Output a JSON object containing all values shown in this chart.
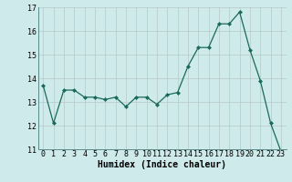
{
  "x": [
    0,
    1,
    2,
    3,
    4,
    5,
    6,
    7,
    8,
    9,
    10,
    11,
    12,
    13,
    14,
    15,
    16,
    17,
    18,
    19,
    20,
    21,
    22,
    23
  ],
  "y": [
    13.7,
    12.1,
    13.5,
    13.5,
    13.2,
    13.2,
    13.1,
    13.2,
    12.8,
    13.2,
    13.2,
    12.9,
    13.3,
    13.4,
    14.5,
    15.3,
    15.3,
    16.3,
    16.3,
    16.8,
    15.2,
    13.9,
    12.1,
    10.9
  ],
  "xlabel": "Humidex (Indice chaleur)",
  "bg_color": "#ceeaea",
  "grid_color": "#b8c8c8",
  "line_color": "#1a6a5a",
  "marker_color": "#1a6a5a",
  "ylim": [
    11,
    17
  ],
  "yticks": [
    11,
    12,
    13,
    14,
    15,
    16,
    17
  ],
  "xticks": [
    0,
    1,
    2,
    3,
    4,
    5,
    6,
    7,
    8,
    9,
    10,
    11,
    12,
    13,
    14,
    15,
    16,
    17,
    18,
    19,
    20,
    21,
    22,
    23
  ],
  "tick_fontsize": 6,
  "xlabel_fontsize": 7
}
